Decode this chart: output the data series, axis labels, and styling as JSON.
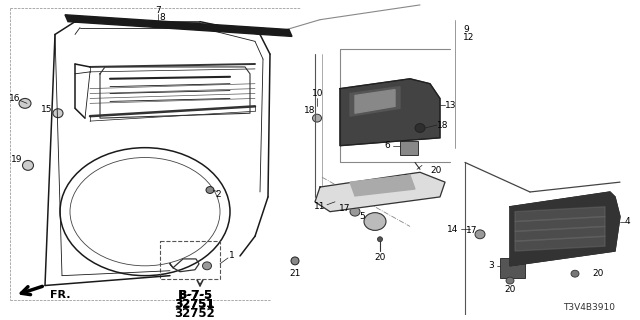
{
  "bg_color": "#ffffff",
  "diagram_code": "T3V4B3910",
  "fr_label": "FR.",
  "part_numbers": [
    "B-7-5",
    "32751",
    "32752"
  ],
  "line_color": "#1a1a1a",
  "label_fontsize": 6.5,
  "bold_fontsize": 8.0
}
